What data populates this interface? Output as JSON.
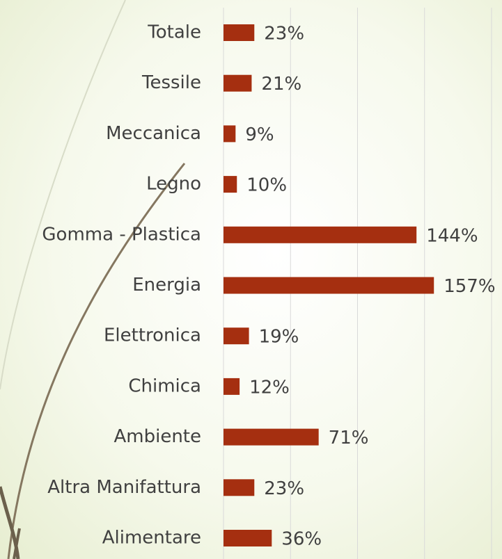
{
  "chart_data": {
    "type": "bar",
    "orientation": "horizontal",
    "categories": [
      "Totale",
      "Tessile",
      "Meccanica",
      "Legno",
      "Gomma - Plastica",
      "Energia",
      "Elettronica",
      "Chimica",
      "Ambiente",
      "Altra Manifattura",
      "Alimentare"
    ],
    "values": [
      23,
      21,
      9,
      10,
      144,
      157,
      19,
      12,
      71,
      23,
      36
    ],
    "value_labels": [
      "23%",
      "21%",
      "9%",
      "10%",
      "144%",
      "157%",
      "19%",
      "12%",
      "71%",
      "23%",
      "36%"
    ],
    "color": "#a52f10",
    "xlim": [
      0,
      200
    ],
    "xticks": [
      0,
      50,
      100,
      150,
      200
    ],
    "grid": true
  }
}
